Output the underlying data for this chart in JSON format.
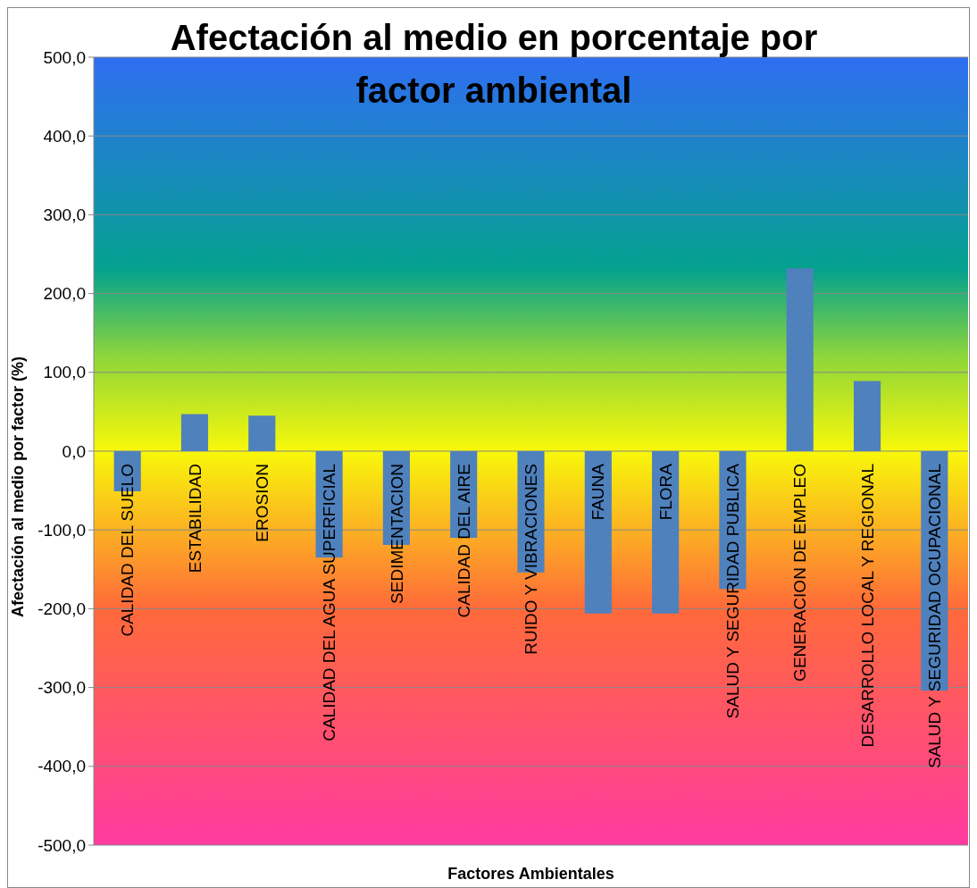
{
  "chart_data": {
    "type": "bar",
    "title": "Afectación al medio en porcentaje por factor ambiental",
    "xlabel": "Factores Ambientales",
    "ylabel": "Afectación al medio por factor (%)",
    "categories": [
      "CALIDAD DEL SUELO",
      "ESTABILIDAD",
      "EROSION",
      "CALIDAD DEL AGUA SUPERFICIAL",
      "SEDIMENTACION",
      "CALIDAD DEL AIRE",
      "RUIDO Y VIBRACIONES",
      "FAUNA",
      "FLORA",
      "SALUD Y SEGURIDAD PUBLICA",
      "GENERACION DE EMPLEO",
      "DESARROLLO LOCAL Y REGIONAL",
      "SALUD Y SEGURIDAD OCUPACIONAL"
    ],
    "values": [
      -51,
      47,
      45,
      -135,
      -119,
      -110,
      -154,
      -206,
      -206,
      -175,
      232,
      89,
      -304
    ],
    "color": "#4f81bd",
    "ylim": [
      -500,
      500
    ],
    "yticks": [
      {
        "value": -500,
        "label": "-500,0"
      },
      {
        "value": -400,
        "label": "-400,0"
      },
      {
        "value": -300,
        "label": "-300,0"
      },
      {
        "value": -200,
        "label": "-200,0"
      },
      {
        "value": -100,
        "label": "-100,0"
      },
      {
        "value": 0,
        "label": "0,0"
      },
      {
        "value": 100,
        "label": "100,0"
      },
      {
        "value": 200,
        "label": "200,0"
      },
      {
        "value": 300,
        "label": "300,0"
      },
      {
        "value": 400,
        "label": "400,0"
      },
      {
        "value": 500,
        "label": "500,0"
      }
    ],
    "grid": "y"
  }
}
